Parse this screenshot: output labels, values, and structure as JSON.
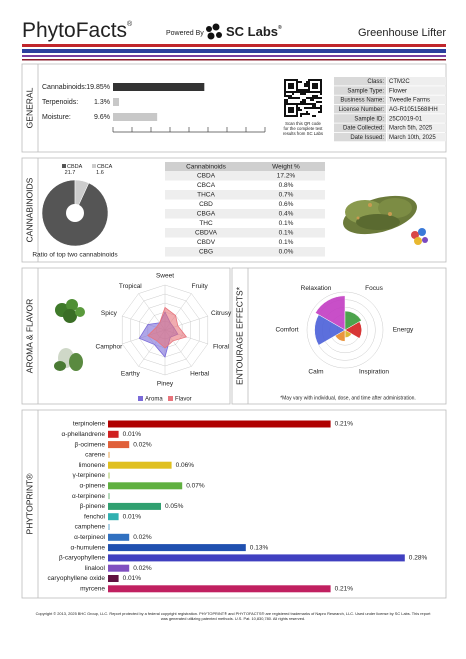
{
  "header": {
    "brand": "PhytoFacts",
    "brand_mark": "®",
    "powered_by": "Powered By",
    "lab": "SC Labs",
    "lab_mark": "®",
    "product": "Greenhouse Lifter"
  },
  "general": {
    "section": "GENERAL",
    "xlim": [
      0,
      25
    ],
    "bars": [
      {
        "label": "Cannabinoids:",
        "value": 19.85,
        "value_label": "19.85%",
        "color": "#333333"
      },
      {
        "label": "Terpenoids:",
        "value": 1.3,
        "value_label": "1.3%",
        "color": "#c8c8c8"
      },
      {
        "label": "Moisture:",
        "value": 9.6,
        "value_label": "9.6%",
        "color": "#c8c8c8"
      }
    ],
    "qr_caption": [
      "Scan this QR code",
      "for the complete test",
      "results from SC Labs"
    ],
    "info": [
      [
        "Class:",
        "CTM2C"
      ],
      [
        "Sample Type:",
        "Flower"
      ],
      [
        "Business Name:",
        "Tweedle Farms"
      ],
      [
        "License Number:",
        "AG-R1051568IHH"
      ],
      [
        "Sample ID:",
        "25C0019-01"
      ],
      [
        "Date Collected:",
        "March 5th, 2025"
      ],
      [
        "Date Issued:",
        "March 10th, 2025"
      ]
    ]
  },
  "cannabinoids": {
    "section": "CANNABINOIDS",
    "pie": {
      "type": "pie",
      "series": [
        {
          "name": "CBDA",
          "value": 21.7,
          "color": "#555555"
        },
        {
          "name": "CBCA",
          "value": 1.6,
          "color": "#cccccc"
        }
      ],
      "caption": "Ratio of top two cannabinoids"
    },
    "table": {
      "columns": [
        "Cannabinoids",
        "Weight %"
      ],
      "rows": [
        [
          "CBDA",
          "17.2%"
        ],
        [
          "CBCA",
          "0.8%"
        ],
        [
          "THCA",
          "0.7%"
        ],
        [
          "CBD",
          "0.6%"
        ],
        [
          "CBGA",
          "0.4%"
        ],
        [
          "THC",
          "0.1%"
        ],
        [
          "CBDVA",
          "0.1%"
        ],
        [
          "CBDV",
          "0.1%"
        ],
        [
          "CBG",
          "0.0%"
        ]
      ]
    }
  },
  "aroma": {
    "section": "AROMA & FLAVOR",
    "type": "radar",
    "rmax": 5,
    "axes": [
      "Sweet",
      "Fruity",
      "Citrusy",
      "Floral",
      "Herbal",
      "Piney",
      "Earthy",
      "Camphor",
      "Spicy",
      "Tropical"
    ],
    "series": [
      {
        "name": "Aroma",
        "color": "#7a6ad8",
        "values": [
          2,
          1,
          1,
          1.5,
          1,
          3,
          2,
          3,
          2,
          1
        ]
      },
      {
        "name": "Flavor",
        "color": "#e8747c",
        "values": [
          2.5,
          2,
          1.5,
          2.5,
          1.5,
          2,
          1.5,
          2,
          1,
          1
        ]
      }
    ]
  },
  "entourage": {
    "section": "ENTOURAGE EFFECTS*",
    "type": "polar-area",
    "rmax": 5,
    "effects": [
      {
        "name": "Relaxation",
        "value": 4.5,
        "color": "#c23cc2"
      },
      {
        "name": "Focus",
        "value": 2.5,
        "color": "#3a9a3a"
      },
      {
        "name": "Energy",
        "value": 2.2,
        "color": "#d42020"
      },
      {
        "name": "Inspiration",
        "value": 1,
        "color": "#d8b020"
      },
      {
        "name": "Calm",
        "value": 1.5,
        "color": "#e88a2a"
      },
      {
        "name": "Comfort",
        "value": 4,
        "color": "#4a5fd8"
      }
    ],
    "note": "*May vary with individual, dose, and time after administration."
  },
  "phytoprint": {
    "section": "PHYTOPRINT®",
    "xlim": [
      0,
      0.3
    ],
    "terpenes": [
      {
        "name": "terpinolene",
        "value": 0.21,
        "value_label": "0.21%",
        "color": "#b00000"
      },
      {
        "name": "α-phellandrene",
        "value": 0.01,
        "value_label": "0.01%",
        "color": "#d02020"
      },
      {
        "name": "β-ocimene",
        "value": 0.02,
        "value_label": "0.02%",
        "color": "#e0603a"
      },
      {
        "name": "carene",
        "value": 0,
        "color": "#e08a20"
      },
      {
        "name": "limonene",
        "value": 0.06,
        "value_label": "0.06%",
        "color": "#e0c020"
      },
      {
        "name": "γ-terpinene",
        "value": 0,
        "color": "#90b830"
      },
      {
        "name": "α-pinene",
        "value": 0.07,
        "value_label": "0.07%",
        "color": "#60b040"
      },
      {
        "name": "α-terpinene",
        "value": 0,
        "color": "#40a050"
      },
      {
        "name": "β-pinene",
        "value": 0.05,
        "value_label": "0.05%",
        "color": "#30a070"
      },
      {
        "name": "fenchol",
        "value": 0.01,
        "value_label": "0.01%",
        "color": "#30b0b0"
      },
      {
        "name": "camphene",
        "value": 0,
        "color": "#3090c0"
      },
      {
        "name": "α-terpineol",
        "value": 0.02,
        "value_label": "0.02%",
        "color": "#3070c0"
      },
      {
        "name": "α-humulene",
        "value": 0.13,
        "value_label": "0.13%",
        "color": "#2050b0"
      },
      {
        "name": "β-caryophyllene",
        "value": 0.28,
        "value_label": "0.28%",
        "color": "#4040c0"
      },
      {
        "name": "linalool",
        "value": 0.02,
        "value_label": "0.02%",
        "color": "#8050c0"
      },
      {
        "name": "caryophyllene oxide",
        "value": 0.01,
        "value_label": "0.01%",
        "color": "#601040"
      },
      {
        "name": "myrcene",
        "value": 0.21,
        "value_label": "0.21%",
        "color": "#c02060"
      }
    ]
  },
  "footer": [
    "Copyright © 2013, 2025 BHC Group, LLC. Report protected by a federal copyright registration. PHYTOPRINT® and PHYTOFACTS® are registered trademarks of Napro Research, LLC. Used under license by SC Labs. This report",
    "was generated utilizing patented methods. U.S. Pat. 10,830,780. All rights reserved."
  ]
}
